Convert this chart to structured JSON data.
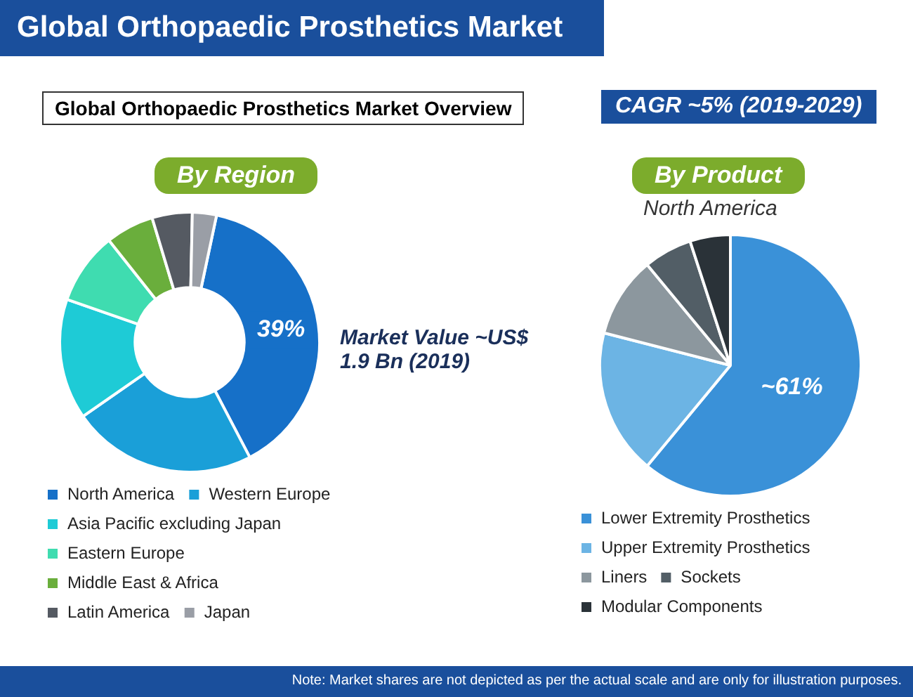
{
  "chart_data": [
    {
      "type": "donut",
      "title": "Global Orthopaedic Prosthetics Market",
      "subtitle": "Global Orthopaedic Prosthetics Market Overview",
      "annotations": [
        "By Region",
        "CAGR ~5% (2019-2029)",
        "Market Value ~US$ 1.9 Bn (2019)"
      ],
      "categories": [
        "North America",
        "Western Europe",
        "Asia Pacific excluding Japan",
        "Eastern Europe",
        "Middle East & Africa",
        "Latin America",
        "Japan"
      ],
      "values": [
        39,
        23,
        15,
        9,
        6,
        5,
        3
      ],
      "colors": [
        "#1670c8",
        "#1a9fd8",
        "#1ecbd6",
        "#3fdcb0",
        "#6aae3c",
        "#555a62",
        "#9a9ea6"
      ],
      "value_labels": [
        "39%",
        null,
        null,
        null,
        null,
        null,
        null
      ],
      "legend": "bottom"
    },
    {
      "type": "pie",
      "title": "By Product",
      "subtitle": "North America",
      "annotations": [
        "Note: Market shares are not depicted as per the actual scale and are only for illustration purposes."
      ],
      "categories": [
        "Lower Extremity Prosthetics",
        "Upper Extremity Prosthetics",
        "Liners",
        "Sockets",
        "Modular Components"
      ],
      "values": [
        61,
        18,
        10,
        6,
        5
      ],
      "colors": [
        "#3a91d8",
        "#6cb4e4",
        "#8c979e",
        "#525e66",
        "#2a3238"
      ],
      "value_labels": [
        "~61%",
        null,
        null,
        null,
        null
      ],
      "legend": "bottom"
    }
  ]
}
